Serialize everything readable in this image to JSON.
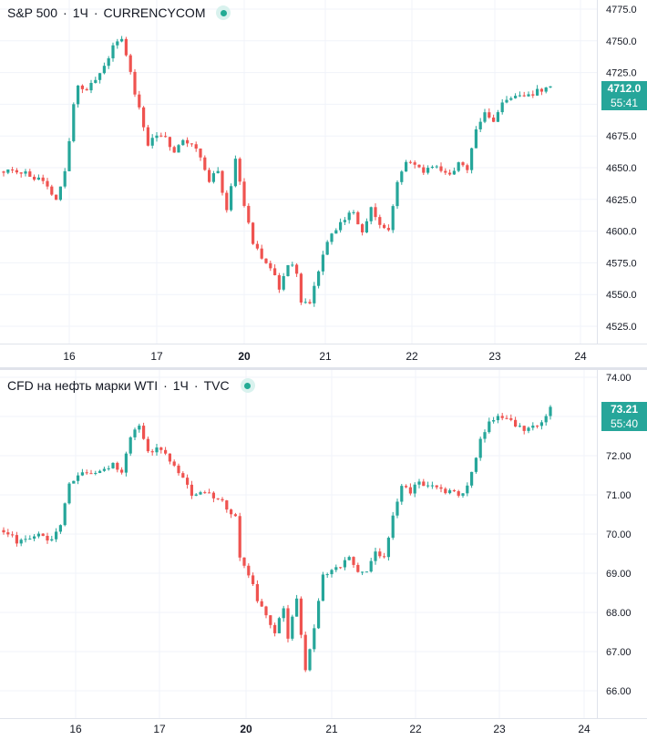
{
  "colors": {
    "up": "#26a69a",
    "down": "#ef5350",
    "grid": "#f0f3fa",
    "axis_text": "#131722",
    "live": "#22ab94"
  },
  "top": {
    "legend": {
      "symbol": "S&P 500",
      "interval": "1Ч",
      "source": "CURRENCYCOM",
      "separator": "·"
    },
    "badge": {
      "price": "4712.0",
      "countdown": "55:41"
    },
    "y_ticks": [
      "4775.0",
      "4750.0",
      "4725.0",
      "4700.0",
      "4675.0",
      "4650.0",
      "4625.0",
      "4600.0",
      "4575.0",
      "4550.0",
      "4525.0"
    ],
    "x_ticks": [
      "16",
      "17",
      "20",
      "21",
      "22",
      "23",
      "24"
    ]
  },
  "bottom": {
    "legend": {
      "symbol": "CFD на нефть марки WTI",
      "interval": "1Ч",
      "source": "TVC",
      "separator": "·"
    },
    "badge": {
      "price": "73.21",
      "countdown": "55:40"
    },
    "y_ticks": [
      "74.00",
      "73.00",
      "72.00",
      "71.00",
      "70.00",
      "69.00",
      "68.00",
      "67.00",
      "66.00"
    ],
    "x_ticks": [
      "16",
      "17",
      "20",
      "21",
      "22",
      "23",
      "24"
    ]
  },
  "chart_data": [
    {
      "type": "candlestick",
      "title": "S&P 500 · 1Ч · CURRENCYCOM",
      "ylim": [
        4517,
        4778
      ],
      "x_labels": [
        "16",
        "17",
        "20",
        "21",
        "22",
        "23",
        "24"
      ],
      "y_ticks": [
        4775,
        4750,
        4725,
        4700,
        4675,
        4650,
        4625,
        4600,
        4575,
        4550,
        4525
      ],
      "last_price": 4712.0,
      "path": [
        [
          0,
          4647
        ],
        [
          5,
          4645
        ],
        [
          8,
          4640
        ],
        [
          10,
          4635
        ],
        [
          12,
          4625
        ],
        [
          14,
          4645
        ],
        [
          16,
          4700
        ],
        [
          17,
          4715
        ],
        [
          19,
          4710
        ],
        [
          21,
          4720
        ],
        [
          23,
          4730
        ],
        [
          25,
          4745
        ],
        [
          27,
          4752
        ],
        [
          28,
          4740
        ],
        [
          30,
          4710
        ],
        [
          32,
          4682
        ],
        [
          33,
          4668
        ],
        [
          35,
          4675
        ],
        [
          37,
          4673
        ],
        [
          39,
          4663
        ],
        [
          41,
          4672
        ],
        [
          43,
          4668
        ],
        [
          45,
          4660
        ],
        [
          47,
          4640
        ],
        [
          49,
          4648
        ],
        [
          51,
          4615
        ],
        [
          53,
          4655
        ],
        [
          54,
          4640
        ],
        [
          55,
          4622
        ],
        [
          57,
          4590
        ],
        [
          59,
          4578
        ],
        [
          61,
          4570
        ],
        [
          63,
          4556
        ],
        [
          65,
          4575
        ],
        [
          67,
          4568
        ],
        [
          68,
          4545
        ],
        [
          70,
          4543
        ],
        [
          72,
          4570
        ],
        [
          74,
          4592
        ],
        [
          76,
          4600
        ],
        [
          78,
          4610
        ],
        [
          80,
          4615
        ],
        [
          82,
          4598
        ],
        [
          84,
          4620
        ],
        [
          86,
          4605
        ],
        [
          88,
          4600
        ],
        [
          90,
          4640
        ],
        [
          92,
          4655
        ],
        [
          94,
          4652
        ],
        [
          96,
          4648
        ],
        [
          98,
          4652
        ],
        [
          100,
          4648
        ],
        [
          102,
          4643
        ],
        [
          104,
          4652
        ],
        [
          106,
          4650
        ],
        [
          108,
          4680
        ],
        [
          110,
          4693
        ],
        [
          112,
          4685
        ],
        [
          114,
          4703
        ],
        [
          116,
          4706
        ],
        [
          118,
          4708
        ],
        [
          120,
          4707
        ],
        [
          122,
          4711
        ],
        [
          124,
          4712
        ],
        [
          125,
          4712
        ]
      ],
      "candle_count": 126
    },
    {
      "type": "candlestick",
      "title": "CFD на нефть марки WTI · 1Ч · TVC",
      "ylim": [
        65.8,
        74.1
      ],
      "x_labels": [
        "16",
        "17",
        "20",
        "21",
        "22",
        "23",
        "24"
      ],
      "y_ticks": [
        74,
        73,
        72,
        71,
        70,
        69,
        68,
        67,
        66
      ],
      "last_price": 73.21,
      "path": [
        [
          0,
          70.1
        ],
        [
          3,
          69.8
        ],
        [
          5,
          69.9
        ],
        [
          7,
          70.0
        ],
        [
          9,
          69.9
        ],
        [
          11,
          69.8
        ],
        [
          13,
          70.2
        ],
        [
          15,
          71.3
        ],
        [
          17,
          71.5
        ],
        [
          19,
          71.6
        ],
        [
          21,
          71.5
        ],
        [
          23,
          71.6
        ],
        [
          25,
          71.8
        ],
        [
          27,
          71.6
        ],
        [
          29,
          72.5
        ],
        [
          31,
          72.7
        ],
        [
          33,
          72.1
        ],
        [
          35,
          72.2
        ],
        [
          37,
          72.1
        ],
        [
          39,
          71.7
        ],
        [
          41,
          71.4
        ],
        [
          43,
          71.0
        ],
        [
          45,
          71.0
        ],
        [
          47,
          71.0
        ],
        [
          49,
          70.9
        ],
        [
          51,
          70.7
        ],
        [
          53,
          70.4
        ],
        [
          54,
          69.4
        ],
        [
          56,
          69.0
        ],
        [
          58,
          68.3
        ],
        [
          60,
          67.9
        ],
        [
          62,
          67.5
        ],
        [
          64,
          68.1
        ],
        [
          65,
          67.3
        ],
        [
          67,
          68.4
        ],
        [
          69,
          66.5
        ],
        [
          71,
          67.6
        ],
        [
          73,
          68.9
        ],
        [
          75,
          69.1
        ],
        [
          77,
          69.2
        ],
        [
          79,
          69.4
        ],
        [
          81,
          69.1
        ],
        [
          83,
          69.0
        ],
        [
          85,
          69.6
        ],
        [
          87,
          69.4
        ],
        [
          89,
          70.5
        ],
        [
          91,
          71.2
        ],
        [
          93,
          71.1
        ],
        [
          95,
          71.3
        ],
        [
          97,
          71.3
        ],
        [
          99,
          71.2
        ],
        [
          101,
          71.1
        ],
        [
          103,
          71.1
        ],
        [
          105,
          71.0
        ],
        [
          107,
          71.6
        ],
        [
          109,
          72.4
        ],
        [
          111,
          72.8
        ],
        [
          113,
          73.0
        ],
        [
          115,
          72.9
        ],
        [
          117,
          72.8
        ],
        [
          119,
          72.6
        ],
        [
          121,
          72.7
        ],
        [
          123,
          72.9
        ],
        [
          125,
          73.21
        ]
      ],
      "candle_count": 126
    }
  ]
}
